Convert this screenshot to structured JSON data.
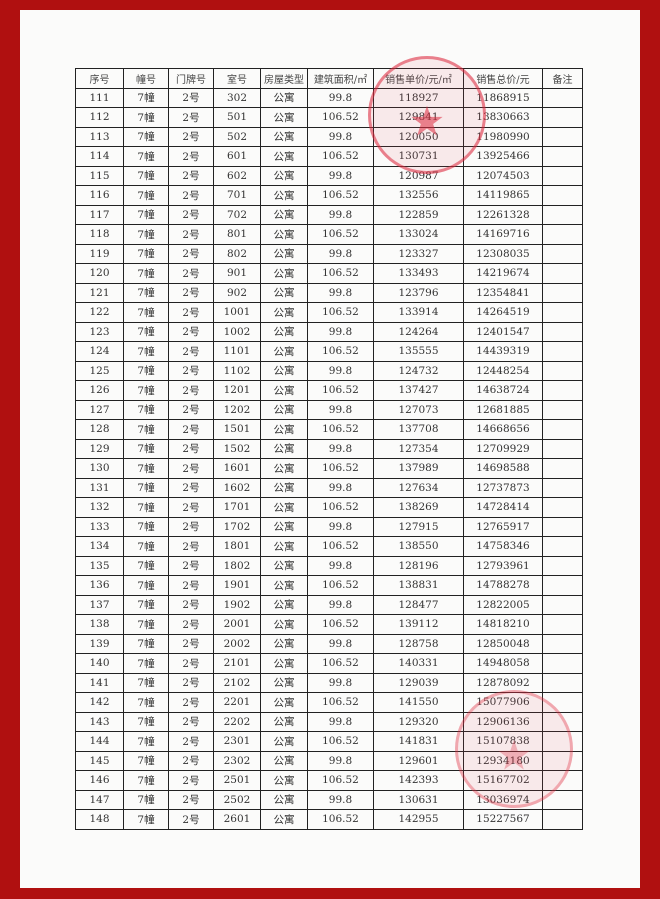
{
  "headers": [
    "序号",
    "幢号",
    "门牌号",
    "室号",
    "房屋类型",
    "建筑面积/㎡",
    "销售单价/元/㎡",
    "销售总价/元",
    "备注"
  ],
  "rows": [
    [
      "111",
      "7幢",
      "2号",
      "302",
      "公寓",
      "99.8",
      "118927",
      "11868915",
      ""
    ],
    [
      "112",
      "7幢",
      "2号",
      "501",
      "公寓",
      "106.52",
      "129841",
      "13830663",
      ""
    ],
    [
      "113",
      "7幢",
      "2号",
      "502",
      "公寓",
      "99.8",
      "120050",
      "11980990",
      ""
    ],
    [
      "114",
      "7幢",
      "2号",
      "601",
      "公寓",
      "106.52",
      "130731",
      "13925466",
      ""
    ],
    [
      "115",
      "7幢",
      "2号",
      "602",
      "公寓",
      "99.8",
      "120987",
      "12074503",
      ""
    ],
    [
      "116",
      "7幢",
      "2号",
      "701",
      "公寓",
      "106.52",
      "132556",
      "14119865",
      ""
    ],
    [
      "117",
      "7幢",
      "2号",
      "702",
      "公寓",
      "99.8",
      "122859",
      "12261328",
      ""
    ],
    [
      "118",
      "7幢",
      "2号",
      "801",
      "公寓",
      "106.52",
      "133024",
      "14169716",
      ""
    ],
    [
      "119",
      "7幢",
      "2号",
      "802",
      "公寓",
      "99.8",
      "123327",
      "12308035",
      ""
    ],
    [
      "120",
      "7幢",
      "2号",
      "901",
      "公寓",
      "106.52",
      "133493",
      "14219674",
      ""
    ],
    [
      "121",
      "7幢",
      "2号",
      "902",
      "公寓",
      "99.8",
      "123796",
      "12354841",
      ""
    ],
    [
      "122",
      "7幢",
      "2号",
      "1001",
      "公寓",
      "106.52",
      "133914",
      "14264519",
      ""
    ],
    [
      "123",
      "7幢",
      "2号",
      "1002",
      "公寓",
      "99.8",
      "124264",
      "12401547",
      ""
    ],
    [
      "124",
      "7幢",
      "2号",
      "1101",
      "公寓",
      "106.52",
      "135555",
      "14439319",
      ""
    ],
    [
      "125",
      "7幢",
      "2号",
      "1102",
      "公寓",
      "99.8",
      "124732",
      "12448254",
      ""
    ],
    [
      "126",
      "7幢",
      "2号",
      "1201",
      "公寓",
      "106.52",
      "137427",
      "14638724",
      ""
    ],
    [
      "127",
      "7幢",
      "2号",
      "1202",
      "公寓",
      "99.8",
      "127073",
      "12681885",
      ""
    ],
    [
      "128",
      "7幢",
      "2号",
      "1501",
      "公寓",
      "106.52",
      "137708",
      "14668656",
      ""
    ],
    [
      "129",
      "7幢",
      "2号",
      "1502",
      "公寓",
      "99.8",
      "127354",
      "12709929",
      ""
    ],
    [
      "130",
      "7幢",
      "2号",
      "1601",
      "公寓",
      "106.52",
      "137989",
      "14698588",
      ""
    ],
    [
      "131",
      "7幢",
      "2号",
      "1602",
      "公寓",
      "99.8",
      "127634",
      "12737873",
      ""
    ],
    [
      "132",
      "7幢",
      "2号",
      "1701",
      "公寓",
      "106.52",
      "138269",
      "14728414",
      ""
    ],
    [
      "133",
      "7幢",
      "2号",
      "1702",
      "公寓",
      "99.8",
      "127915",
      "12765917",
      ""
    ],
    [
      "134",
      "7幢",
      "2号",
      "1801",
      "公寓",
      "106.52",
      "138550",
      "14758346",
      ""
    ],
    [
      "135",
      "7幢",
      "2号",
      "1802",
      "公寓",
      "99.8",
      "128196",
      "12793961",
      ""
    ],
    [
      "136",
      "7幢",
      "2号",
      "1901",
      "公寓",
      "106.52",
      "138831",
      "14788278",
      ""
    ],
    [
      "137",
      "7幢",
      "2号",
      "1902",
      "公寓",
      "99.8",
      "128477",
      "12822005",
      ""
    ],
    [
      "138",
      "7幢",
      "2号",
      "2001",
      "公寓",
      "106.52",
      "139112",
      "14818210",
      ""
    ],
    [
      "139",
      "7幢",
      "2号",
      "2002",
      "公寓",
      "99.8",
      "128758",
      "12850048",
      ""
    ],
    [
      "140",
      "7幢",
      "2号",
      "2101",
      "公寓",
      "106.52",
      "140331",
      "14948058",
      ""
    ],
    [
      "141",
      "7幢",
      "2号",
      "2102",
      "公寓",
      "99.8",
      "129039",
      "12878092",
      ""
    ],
    [
      "142",
      "7幢",
      "2号",
      "2201",
      "公寓",
      "106.52",
      "141550",
      "15077906",
      ""
    ],
    [
      "143",
      "7幢",
      "2号",
      "2202",
      "公寓",
      "99.8",
      "129320",
      "12906136",
      ""
    ],
    [
      "144",
      "7幢",
      "2号",
      "2301",
      "公寓",
      "106.52",
      "141831",
      "15107838",
      ""
    ],
    [
      "145",
      "7幢",
      "2号",
      "2302",
      "公寓",
      "99.8",
      "129601",
      "12934180",
      ""
    ],
    [
      "146",
      "7幢",
      "2号",
      "2501",
      "公寓",
      "106.52",
      "142393",
      "15167702",
      ""
    ],
    [
      "147",
      "7幢",
      "2号",
      "2502",
      "公寓",
      "99.8",
      "130631",
      "13036974",
      ""
    ],
    [
      "148",
      "7幢",
      "2号",
      "2601",
      "公寓",
      "106.52",
      "142955",
      "15227567",
      ""
    ]
  ],
  "colors": {
    "border": "#b01010",
    "stamp": "#dc283c"
  }
}
